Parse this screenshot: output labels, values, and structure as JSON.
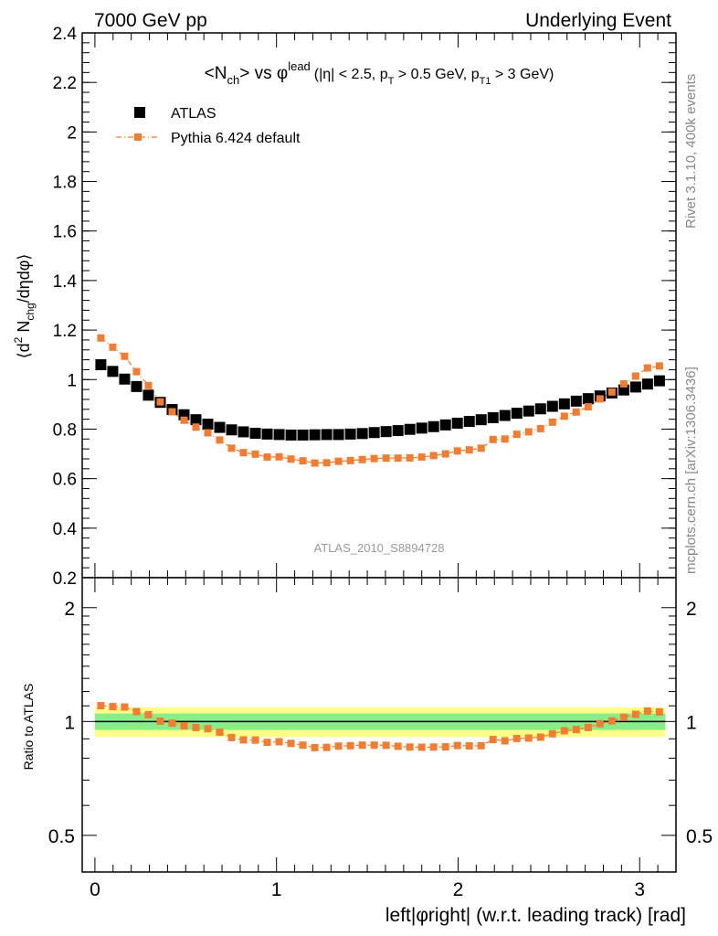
{
  "header": {
    "energy_label": "7000 GeV pp",
    "event_type": "Underlying Event"
  },
  "side_text": {
    "rivet": "Rivet 3.1.10,  400k events",
    "mcplots": "mcplots.cern.ch [arXiv:1306.3436]"
  },
  "chart_data": [
    {
      "type": "scatter",
      "panel": "main",
      "title": {
        "n": "N",
        "ch": "ch",
        "mid": "> vs ",
        "phi": "φ",
        "lead": "lead",
        "cut1": "(|η| < 2.5, p",
        "T": "T",
        "cut2": " > 0.5 GeV, p",
        "T1": "T1",
        "cut3": " > 3 GeV)"
      },
      "ylabel": {
        "open": "⟨d",
        "sq": "2",
        "n": " N",
        "sub": "chg",
        "rest": "/dηdφ⟩"
      },
      "xlabel": "left|φright| (w.r.t. leading track) [rad]",
      "watermark": "ATLAS_2010_S8894728",
      "xlim": [
        -0.07,
        3.2
      ],
      "ylim": [
        0.2,
        2.4
      ],
      "x_ticks": [
        "0",
        "1",
        "2",
        "3"
      ],
      "y_ticks": [
        "0.2",
        "0.4",
        "0.6",
        "0.8",
        "1",
        "1.2",
        "1.4",
        "1.6",
        "1.8",
        "2",
        "2.2",
        "2.4"
      ],
      "legend_position": "top-left",
      "x": [
        0.0327,
        0.0982,
        0.1636,
        0.2291,
        0.2945,
        0.36,
        0.4254,
        0.4909,
        0.5563,
        0.6218,
        0.6872,
        0.7527,
        0.8181,
        0.8836,
        0.949,
        1.0145,
        1.0799,
        1.1454,
        1.2108,
        1.2763,
        1.3417,
        1.4072,
        1.4726,
        1.5381,
        1.6035,
        1.669,
        1.7344,
        1.7999,
        1.8653,
        1.9308,
        1.9962,
        2.0617,
        2.1271,
        2.1926,
        2.258,
        2.3235,
        2.3889,
        2.4544,
        2.5198,
        2.5853,
        2.6507,
        2.7162,
        2.7816,
        2.8471,
        2.9125,
        2.978,
        3.0434,
        3.1089
      ],
      "series": [
        {
          "name": "ATLAS",
          "color": "#000000",
          "marker": "square",
          "values": [
            1.06,
            1.033,
            1.002,
            0.972,
            0.937,
            0.908,
            0.879,
            0.858,
            0.838,
            0.82,
            0.807,
            0.797,
            0.789,
            0.783,
            0.78,
            0.778,
            0.776,
            0.776,
            0.777,
            0.778,
            0.778,
            0.78,
            0.782,
            0.786,
            0.79,
            0.794,
            0.799,
            0.804,
            0.81,
            0.817,
            0.824,
            0.831,
            0.838,
            0.846,
            0.855,
            0.864,
            0.873,
            0.882,
            0.892,
            0.902,
            0.913,
            0.923,
            0.934,
            0.946,
            0.958,
            0.97,
            0.982,
            0.995
          ]
        },
        {
          "name": "Pythia 6.424 default",
          "color": "#f27d31",
          "marker": "square",
          "line": "dash-dot",
          "values": [
            1.168,
            1.131,
            1.094,
            1.032,
            0.976,
            0.91,
            0.87,
            0.836,
            0.808,
            0.785,
            0.756,
            0.723,
            0.705,
            0.699,
            0.687,
            0.688,
            0.679,
            0.672,
            0.663,
            0.664,
            0.67,
            0.673,
            0.677,
            0.681,
            0.683,
            0.683,
            0.684,
            0.687,
            0.693,
            0.7,
            0.712,
            0.716,
            0.723,
            0.758,
            0.76,
            0.779,
            0.789,
            0.802,
            0.828,
            0.852,
            0.869,
            0.89,
            0.922,
            0.95,
            0.983,
            1.014,
            1.047,
            1.055
          ]
        }
      ]
    },
    {
      "type": "scatter",
      "panel": "ratio",
      "ylabel": "Ratio to ATLAS",
      "yscale": "log",
      "ylim": [
        0.4,
        2.4
      ],
      "y_ticks": [
        "0.5",
        "1",
        "2"
      ],
      "x_ticks": [
        "0",
        "1",
        "2",
        "3"
      ],
      "band_inner": [
        0.95,
        1.05
      ],
      "band_outer": [
        0.91,
        1.09
      ],
      "band_colors": {
        "outer": "#ffff88",
        "inner": "#88ee88"
      },
      "series": [
        {
          "name": "Pythia 6.424 default",
          "color": "#f27d31",
          "values": [
            1.101,
            1.095,
            1.092,
            1.062,
            1.042,
            1.002,
            0.99,
            0.974,
            0.964,
            0.957,
            0.937,
            0.907,
            0.894,
            0.893,
            0.881,
            0.884,
            0.875,
            0.866,
            0.853,
            0.854,
            0.861,
            0.863,
            0.866,
            0.866,
            0.865,
            0.86,
            0.856,
            0.855,
            0.856,
            0.857,
            0.864,
            0.862,
            0.863,
            0.896,
            0.889,
            0.902,
            0.904,
            0.909,
            0.928,
            0.945,
            0.952,
            0.964,
            0.987,
            1.004,
            1.026,
            1.045,
            1.066,
            1.06
          ]
        }
      ]
    }
  ]
}
